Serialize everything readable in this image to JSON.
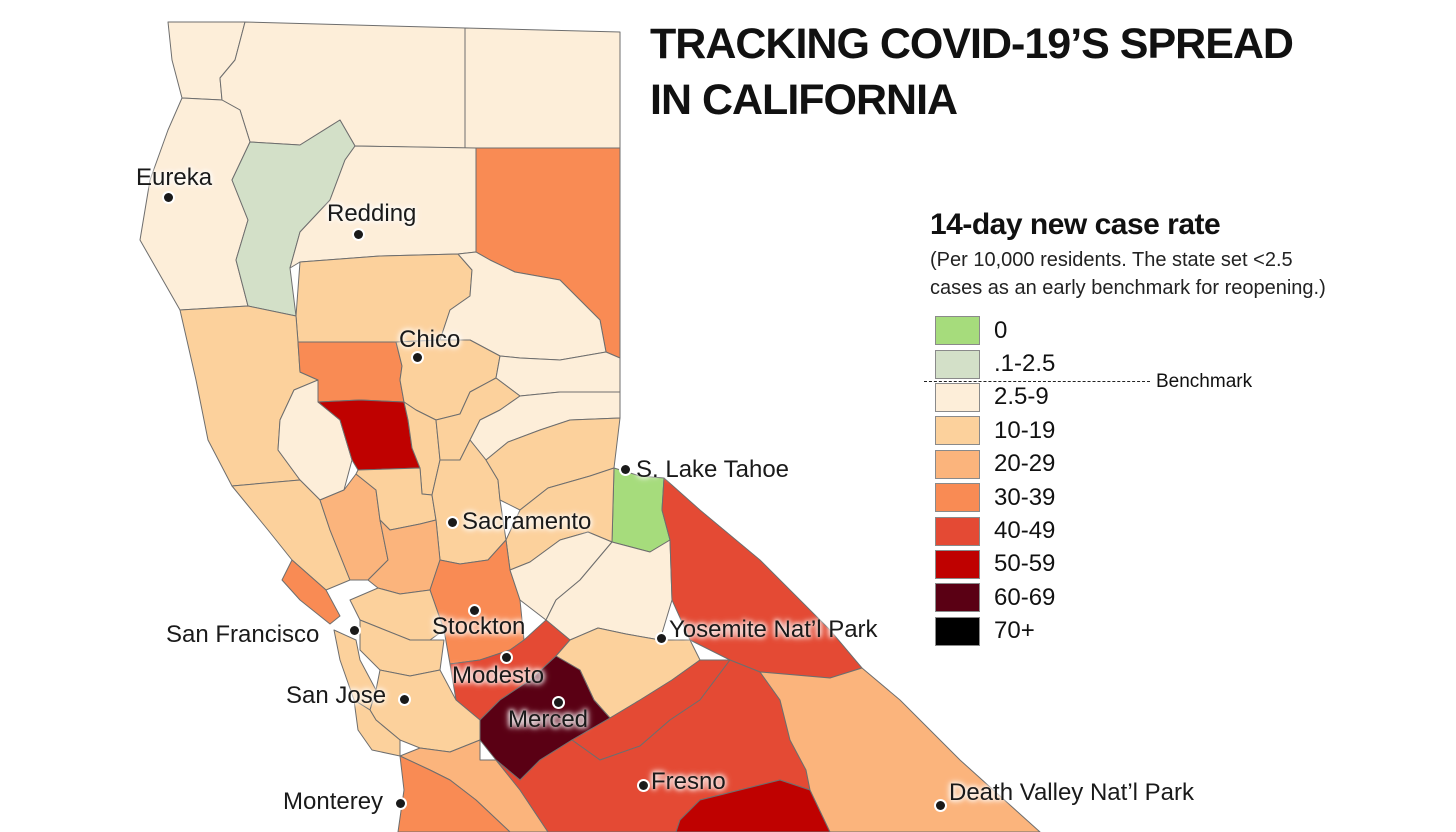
{
  "title_lines": [
    "TRACKING COVID-19’S SPREAD",
    "IN CALIFORNIA"
  ],
  "legend": {
    "title": "14-day new case rate",
    "subtitle_lines": [
      "(Per 10,000 residents. The state set <2.5",
      "cases as an early benchmark for reopening.)"
    ],
    "benchmark_label": "Benchmark",
    "items": [
      {
        "label": "0",
        "color": "#a6dc7c"
      },
      {
        "label": ".1-2.5",
        "color": "#d3e0c8"
      },
      {
        "label": "2.5-9",
        "color": "#fdeed9"
      },
      {
        "label": "10-19",
        "color": "#fcd19c"
      },
      {
        "label": "20-29",
        "color": "#fbb47c"
      },
      {
        "label": "30-39",
        "color": "#f98b54"
      },
      {
        "label": "40-49",
        "color": "#e44a34"
      },
      {
        "label": "50-59",
        "color": "#bf0100"
      },
      {
        "label": "60-69",
        "color": "#5a0014"
      },
      {
        "label": "70+",
        "color": "#000000"
      }
    ]
  },
  "cities": [
    {
      "name": "Eureka"
    },
    {
      "name": "Redding"
    },
    {
      "name": "Chico"
    },
    {
      "name": "S. Lake Tahoe"
    },
    {
      "name": "Sacramento"
    },
    {
      "name": "Stockton"
    },
    {
      "name": "San Francisco"
    },
    {
      "name": "Yosemite Nat’l Park"
    },
    {
      "name": "Modesto"
    },
    {
      "name": "San Jose"
    },
    {
      "name": "Merced"
    },
    {
      "name": "Fresno"
    },
    {
      "name": "Monterey"
    },
    {
      "name": "Death Valley Nat’l Park"
    }
  ]
}
